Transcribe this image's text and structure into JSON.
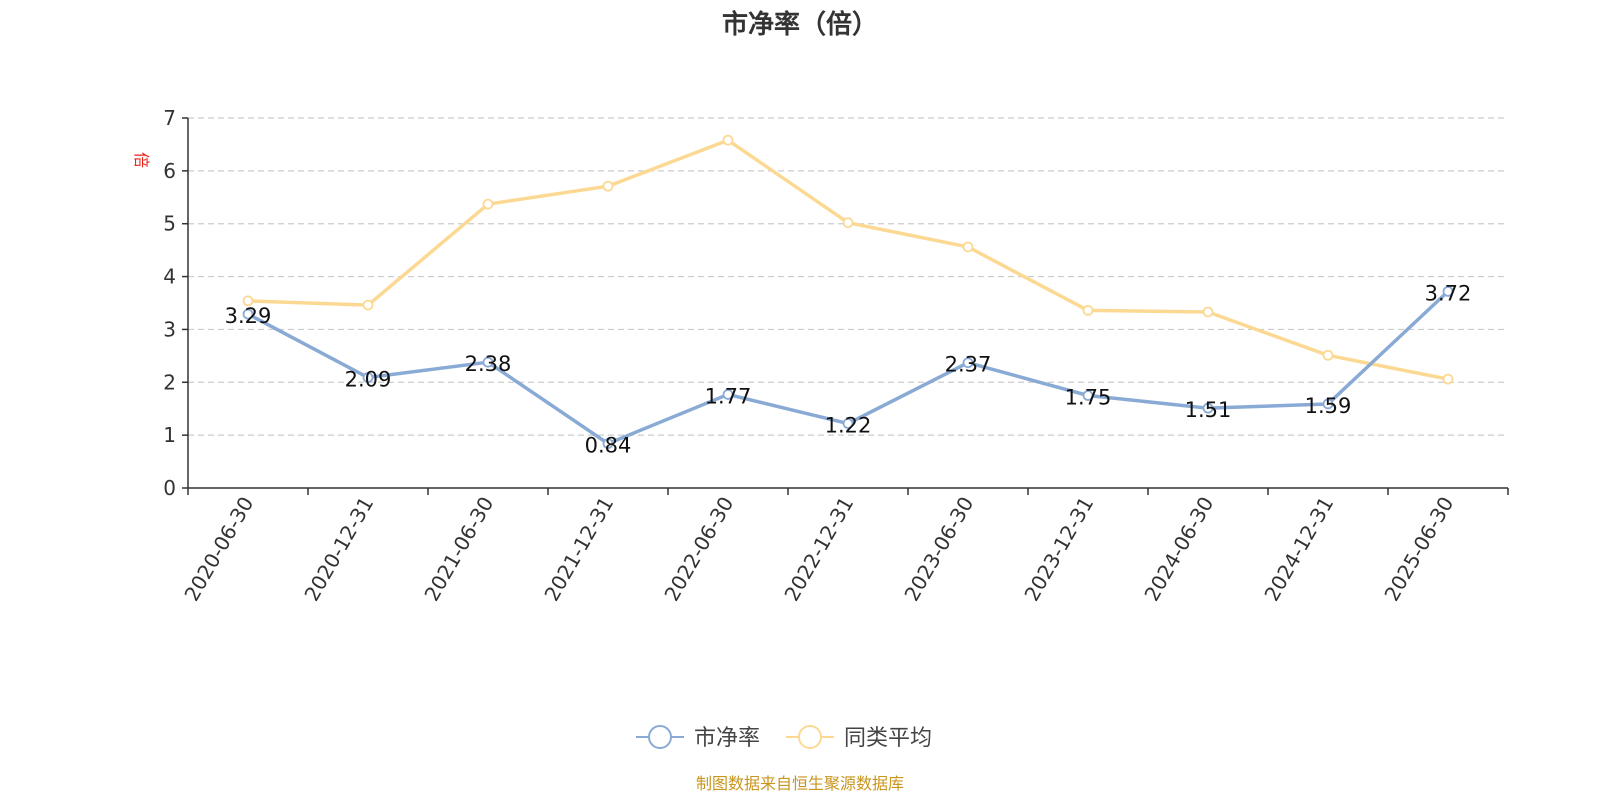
{
  "chart_data": {
    "type": "line",
    "title": "市净率（倍）",
    "ylabel": "倍",
    "xlabel": "",
    "ylim": [
      0,
      7
    ],
    "yticks": [
      0,
      1,
      2,
      3,
      4,
      5,
      6,
      7
    ],
    "grid": "horizontal-dashed",
    "legend_position": "bottom-center",
    "categories": [
      "2020-06-30",
      "2020-12-31",
      "2021-06-30",
      "2021-12-31",
      "2022-06-30",
      "2022-12-31",
      "2023-06-30",
      "2023-12-31",
      "2024-06-30",
      "2024-12-31",
      "2025-06-30"
    ],
    "series": [
      {
        "name": "市净率",
        "color": "#8aaad6",
        "values": [
          3.29,
          2.09,
          2.38,
          0.84,
          1.77,
          1.22,
          2.37,
          1.75,
          1.51,
          1.59,
          3.72
        ],
        "data_labels": [
          "3.29",
          "2.09",
          "2.38",
          "0.84",
          "1.77",
          "1.22",
          "2.37",
          "1.75",
          "1.51",
          "1.59",
          "3.72"
        ]
      },
      {
        "name": "同类平均",
        "color": "#fcd993",
        "values": [
          3.54,
          3.46,
          5.37,
          5.71,
          6.58,
          5.02,
          4.56,
          3.36,
          3.33,
          2.51,
          2.06
        ]
      }
    ]
  },
  "footer": {
    "source": "制图数据来自恒生聚源数据库"
  }
}
